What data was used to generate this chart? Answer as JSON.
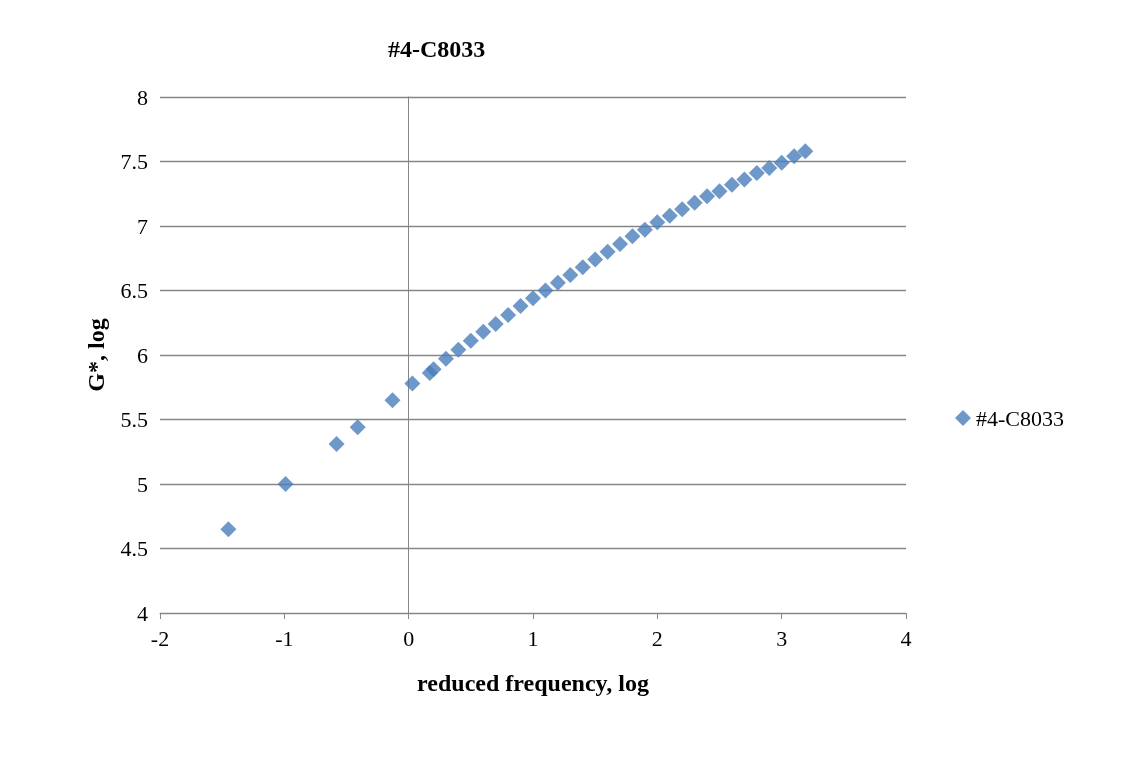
{
  "chart_data": {
    "type": "scatter",
    "title": "#4-C8033",
    "xlabel": "reduced frequency, log",
    "ylabel": "G*, log",
    "series": [
      {
        "name": "#4-C8033",
        "color": "#4a7ebb",
        "x": [
          -1.45,
          -0.99,
          -0.58,
          -0.41,
          -0.13,
          0.03,
          0.17,
          0.2,
          0.3,
          0.4,
          0.5,
          0.6,
          0.7,
          0.8,
          0.9,
          1.0,
          1.1,
          1.2,
          1.3,
          1.4,
          1.5,
          1.6,
          1.7,
          1.8,
          1.9,
          2.0,
          2.1,
          2.2,
          2.3,
          2.4,
          2.5,
          2.6,
          2.7,
          2.8,
          2.9,
          3.0,
          3.1,
          3.19
        ],
        "values": [
          4.65,
          5.0,
          5.31,
          5.44,
          5.65,
          5.78,
          5.86,
          5.89,
          5.97,
          6.04,
          6.11,
          6.18,
          6.24,
          6.31,
          6.38,
          6.44,
          6.5,
          6.56,
          6.62,
          6.68,
          6.74,
          6.8,
          6.86,
          6.92,
          6.97,
          7.03,
          7.08,
          7.13,
          7.18,
          7.23,
          7.27,
          7.32,
          7.36,
          7.41,
          7.45,
          7.49,
          7.54,
          7.58
        ]
      }
    ],
    "xlim": [
      -2,
      4
    ],
    "xticks": [
      -2,
      -1,
      0,
      1,
      2,
      3,
      4
    ],
    "ylim": [
      4,
      8
    ],
    "yticks": [
      4,
      4.5,
      5,
      5.5,
      6,
      6.5,
      7,
      7.5,
      8
    ],
    "grid": "y",
    "legend": "right",
    "marker": "diamond"
  }
}
